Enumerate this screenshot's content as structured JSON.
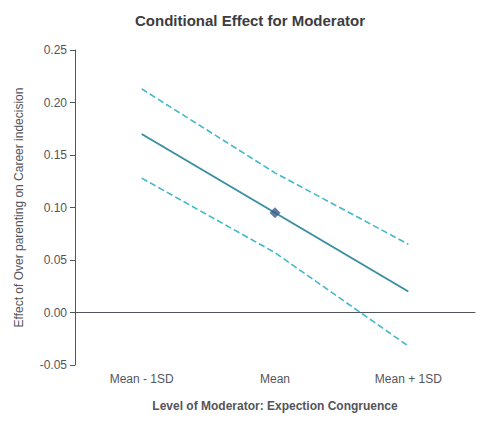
{
  "chart_data": {
    "type": "line",
    "title": "Conditional Effect for Moderator",
    "xlabel": "Level of Moderator: Expection Congruence",
    "ylabel": "Effect of Over parenting on Career indecision",
    "categories": [
      "Mean - 1SD",
      "Mean",
      "Mean + 1SD"
    ],
    "series": [
      {
        "values": [
          0.213,
          0.133,
          0.065
        ],
        "color": "#42b8c8",
        "line_style": "dashed"
      },
      {
        "values": [
          0.128,
          0.057,
          -0.032
        ],
        "color": "#42b8c8",
        "line_style": "dashed"
      },
      {
        "values": [
          0.17,
          0.095,
          0.02
        ],
        "color": "#3a8fa0",
        "line_style": "solid"
      },
      {
        "type": "scatter",
        "values": [
          null,
          0.095,
          null
        ],
        "color": "#3a5a8a",
        "marker": "diamond"
      }
    ],
    "ylim": [
      -0.05,
      0.25
    ],
    "yticks": [
      -0.05,
      {
        "value": 0,
        "label": "0.00"
      },
      0.05,
      {
        "value": 0.1,
        "label": "0.10"
      },
      0.15,
      {
        "value": 0.2,
        "label": "0.20"
      },
      0.25
    ],
    "grid": false
  }
}
